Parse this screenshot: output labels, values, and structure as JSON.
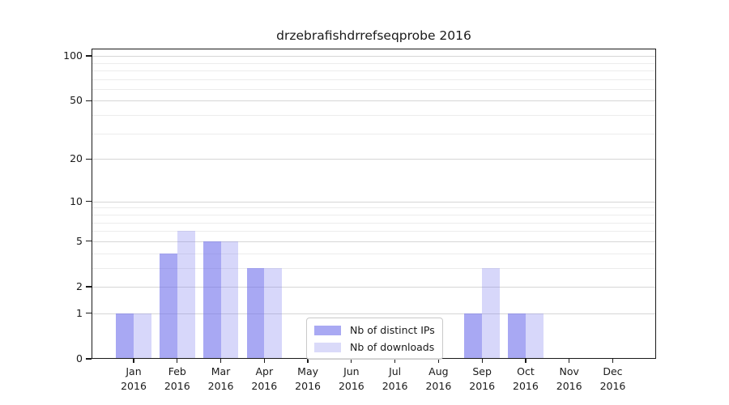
{
  "title": "drzebrafishdrrefseqprobe 2016",
  "legend": {
    "items": [
      {
        "label": "Nb of distinct IPs",
        "color_key": "ips"
      },
      {
        "label": "Nb of downloads",
        "color_key": "downloads"
      }
    ]
  },
  "colors": {
    "ips_bar": "rgba(110,110,235,0.60)",
    "downloads_bar": "rgba(123,123,238,0.30)",
    "ips_solid": "#a9a9f3",
    "downloads_solid": "#dadaf9",
    "grid_major": "#d6d6d6",
    "grid_minor": "#ececec",
    "spine": "#1a1a1a",
    "text": "#1a1a1a"
  },
  "chart_data": {
    "type": "bar",
    "title": "drzebrafishdrrefseqprobe 2016",
    "categories": [
      "Jan",
      "Feb",
      "Mar",
      "Apr",
      "May",
      "Jun",
      "Jul",
      "Aug",
      "Sep",
      "Oct",
      "Nov",
      "Dec"
    ],
    "year": "2016",
    "series": [
      {
        "name": "Nb of distinct IPs",
        "key": "ips",
        "values": [
          1,
          4,
          5,
          3,
          0,
          0,
          0,
          0,
          1,
          1,
          0,
          0
        ]
      },
      {
        "name": "Nb of downloads",
        "key": "downloads",
        "values": [
          1,
          6,
          5,
          3,
          0,
          0,
          0,
          0,
          3,
          1,
          0,
          0
        ]
      }
    ],
    "xlabel": "",
    "ylabel": "",
    "yscale": "log1p",
    "ylim": [
      0,
      112
    ],
    "yticks": [
      {
        "value": 0,
        "label": "0"
      },
      {
        "value": 1,
        "label": "1"
      },
      {
        "value": 2,
        "label": "2"
      },
      {
        "value": 5,
        "label": "5"
      },
      {
        "value": 10,
        "label": "10"
      },
      {
        "value": 20,
        "label": "20"
      },
      {
        "value": 50,
        "label": "50"
      },
      {
        "value": 100,
        "label": "100"
      }
    ],
    "minor_yticks": [
      3,
      4,
      6,
      7,
      8,
      9,
      30,
      40,
      60,
      70,
      80,
      90
    ],
    "grid": true,
    "legend_position": "lower center"
  }
}
